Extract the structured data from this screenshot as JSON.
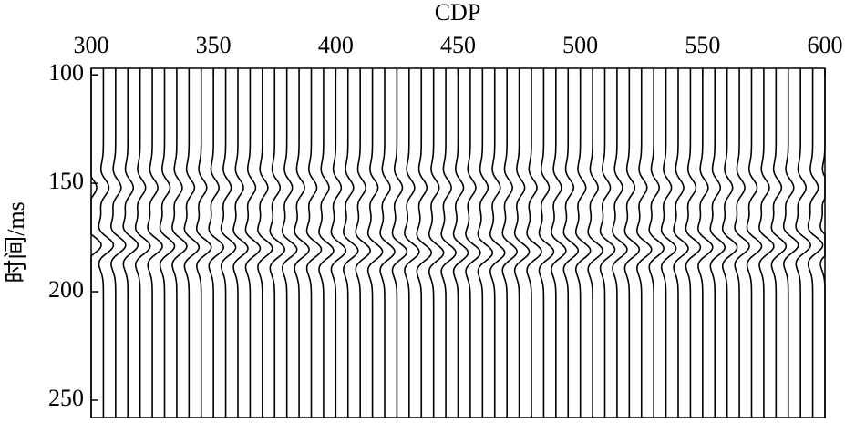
{
  "chart_data": {
    "type": "seismic",
    "title": "CDP",
    "ylabel": "时间/ms",
    "x": [
      300,
      305,
      310,
      315,
      320,
      325,
      330,
      335,
      340,
      345,
      350,
      355,
      360,
      365,
      370,
      375,
      380,
      385,
      390,
      395,
      400,
      405,
      410,
      415,
      420,
      425,
      430,
      435,
      440,
      445,
      450,
      455,
      460,
      465,
      470,
      475,
      480,
      485,
      490,
      495,
      500,
      505,
      510,
      515,
      520,
      525,
      530,
      535,
      540,
      545,
      550,
      555,
      560,
      565,
      570,
      575,
      580,
      585,
      590,
      595,
      600
    ],
    "series": [
      {
        "color": "#000000",
        "values": [
          152,
          152,
          152,
          152,
          152,
          152,
          152,
          152,
          152,
          152,
          152,
          152,
          152,
          152,
          152,
          152,
          152,
          152,
          152,
          152,
          152,
          152,
          152,
          152,
          152,
          152,
          152,
          152,
          152,
          152,
          152,
          152,
          152,
          152,
          152,
          152,
          152,
          152,
          152,
          152,
          152,
          152,
          152,
          152,
          152,
          152,
          152,
          152,
          152,
          152,
          152,
          152,
          152,
          152,
          152,
          152,
          152,
          152,
          152,
          152,
          152
        ]
      },
      {
        "color": "#000000",
        "values": [
          178.5,
          178.5,
          178.5,
          178.5,
          179,
          179,
          179,
          179,
          179.5,
          179.5,
          179.5,
          179.5,
          180,
          180,
          180,
          180.5,
          180.5,
          180.5,
          180.5,
          181,
          181,
          181,
          181,
          181.5,
          181.5,
          181.5,
          181.5,
          182,
          182,
          182,
          182,
          182,
          182,
          182,
          181.5,
          181.5,
          181.5,
          181.5,
          181,
          181,
          181,
          181,
          180.5,
          180.5,
          180.5,
          180.5,
          180,
          180,
          180,
          179.5,
          179.5,
          179.5,
          179.5,
          179,
          179,
          179,
          179,
          178.5,
          178.5,
          178.5,
          178.5
        ]
      }
    ],
    "xlim": [
      300,
      600
    ],
    "xticks": [
      300,
      350,
      400,
      450,
      500,
      550,
      600
    ],
    "ylim": [
      97,
      258
    ],
    "yticks": [
      100,
      150,
      200,
      250
    ],
    "y_inverted": true
  }
}
